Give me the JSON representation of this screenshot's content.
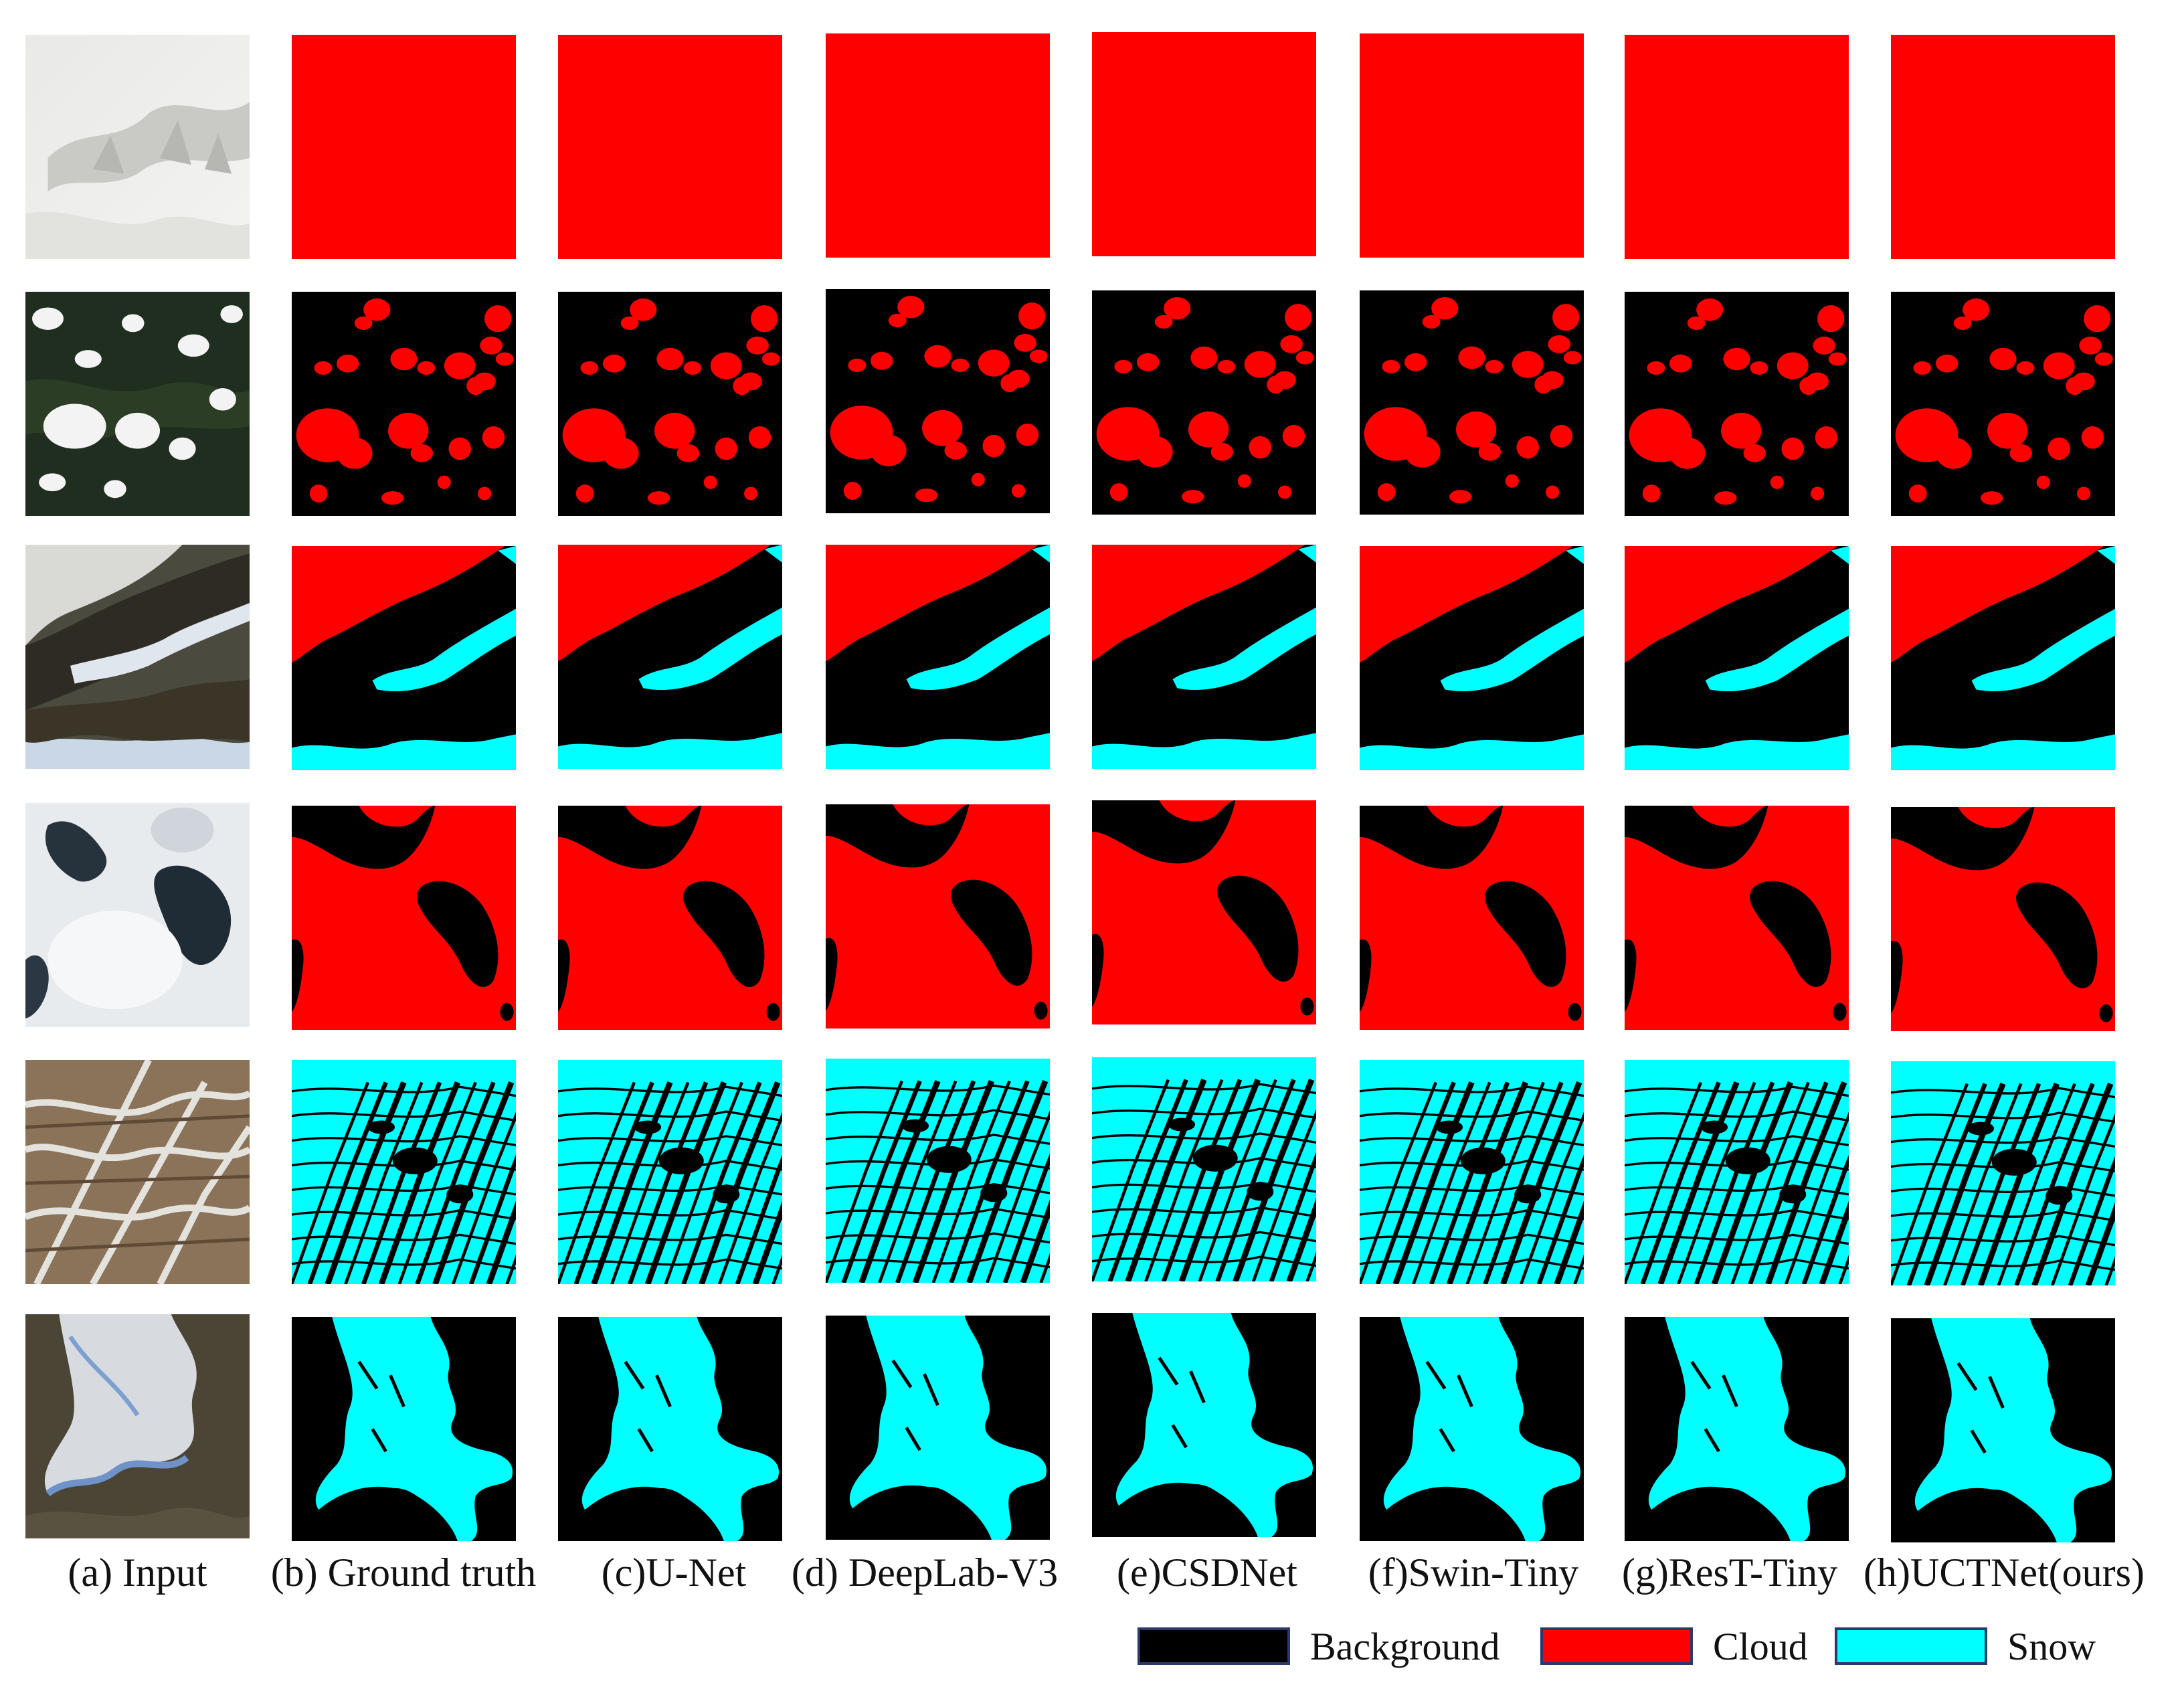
{
  "columns": [
    {
      "caption": "(a) Input"
    },
    {
      "caption": "(b) Ground truth"
    },
    {
      "caption": "(c)U-Net"
    },
    {
      "caption": "(d) DeepLab-V3"
    },
    {
      "caption": "(e)CSDNet"
    },
    {
      "caption": "(f)Swin-Tiny"
    },
    {
      "caption": "(g)ResT-Tiny"
    },
    {
      "caption": "(h)UCTNet(ours)"
    }
  ],
  "legend": [
    {
      "label": "Background",
      "color": "#000000"
    },
    {
      "label": "Cloud",
      "color": "#ff0000"
    },
    {
      "label": "Snow",
      "color": "#00ffff"
    }
  ],
  "colors": {
    "background": "#000000",
    "cloud": "#ff0000",
    "snow": "#00ffff"
  }
}
